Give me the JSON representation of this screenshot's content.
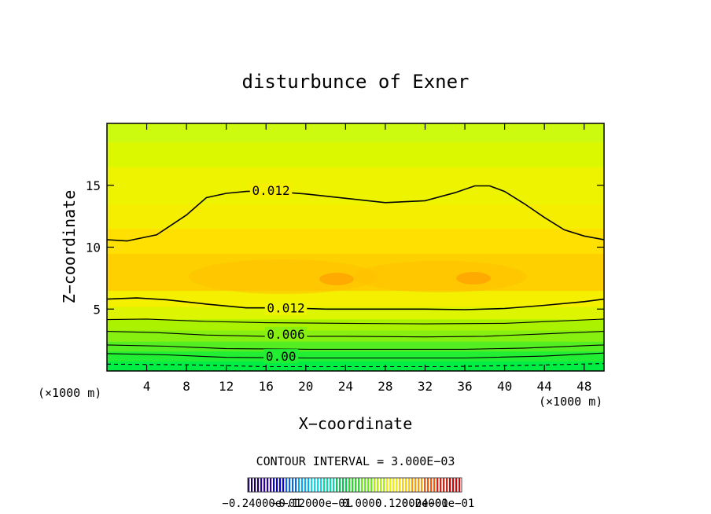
{
  "chart_data": {
    "type": "contour",
    "title": "disturbunce of Exner",
    "xlabel": "X−coordinate",
    "ylabel": "Z−coordinate",
    "x_unit_label": "(×1000 m)",
    "z_unit_label": "(×1000 m)",
    "xlim": [
      0,
      50
    ],
    "ylim": [
      0,
      20
    ],
    "x_ticks": [
      4,
      8,
      12,
      16,
      20,
      24,
      28,
      32,
      36,
      40,
      44,
      48
    ],
    "y_ticks": [
      5,
      10,
      15
    ],
    "contour_interval_text": "CONTOUR INTERVAL = 3.000E−03",
    "contour_labels": [
      {
        "text": "0.012",
        "x": 16.5,
        "z": 14.6
      },
      {
        "text": "0.012",
        "x": 18.0,
        "z": 5.1
      },
      {
        "text": "0.006",
        "x": 18.0,
        "z": 3.0
      },
      {
        "text": "0.00",
        "x": 17.5,
        "z": 1.2
      }
    ],
    "contours": [
      {
        "level": 0.012,
        "points": [
          [
            0,
            10.6
          ],
          [
            2,
            10.5
          ],
          [
            5,
            11.0
          ],
          [
            8,
            12.6
          ],
          [
            10,
            14.0
          ],
          [
            12,
            14.35
          ],
          [
            14,
            14.5
          ],
          [
            16,
            14.55
          ],
          [
            20,
            14.3
          ],
          [
            24,
            13.95
          ],
          [
            28,
            13.6
          ],
          [
            32,
            13.75
          ],
          [
            35,
            14.4
          ],
          [
            37,
            14.95
          ],
          [
            38.5,
            14.95
          ],
          [
            40,
            14.5
          ],
          [
            42,
            13.5
          ],
          [
            44,
            12.4
          ],
          [
            46,
            11.4
          ],
          [
            48,
            10.9
          ],
          [
            50,
            10.6
          ]
        ]
      },
      {
        "level": 0.012,
        "points": [
          [
            0,
            5.8
          ],
          [
            3,
            5.9
          ],
          [
            6,
            5.75
          ],
          [
            10,
            5.4
          ],
          [
            14,
            5.1
          ],
          [
            18,
            5.1
          ],
          [
            22,
            5.0
          ],
          [
            28,
            5.0
          ],
          [
            32,
            5.0
          ],
          [
            36,
            4.95
          ],
          [
            40,
            5.05
          ],
          [
            44,
            5.3
          ],
          [
            48,
            5.6
          ],
          [
            50,
            5.8
          ]
        ]
      },
      {
        "level": 0.009,
        "points": [
          [
            0,
            4.15
          ],
          [
            4,
            4.2
          ],
          [
            10,
            4.0
          ],
          [
            16,
            3.9
          ],
          [
            24,
            3.85
          ],
          [
            32,
            3.8
          ],
          [
            40,
            3.85
          ],
          [
            46,
            4.05
          ],
          [
            50,
            4.2
          ]
        ]
      },
      {
        "level": 0.006,
        "points": [
          [
            0,
            3.2
          ],
          [
            5,
            3.1
          ],
          [
            10,
            2.9
          ],
          [
            16,
            2.8
          ],
          [
            24,
            2.8
          ],
          [
            32,
            2.75
          ],
          [
            38,
            2.8
          ],
          [
            44,
            3.0
          ],
          [
            50,
            3.2
          ]
        ]
      },
      {
        "level": 0.003,
        "points": [
          [
            0,
            2.1
          ],
          [
            6,
            2.0
          ],
          [
            12,
            1.8
          ],
          [
            20,
            1.75
          ],
          [
            28,
            1.75
          ],
          [
            36,
            1.75
          ],
          [
            42,
            1.85
          ],
          [
            50,
            2.1
          ]
        ]
      },
      {
        "level": 0.0,
        "points": [
          [
            0,
            1.4
          ],
          [
            6,
            1.3
          ],
          [
            12,
            1.1
          ],
          [
            20,
            1.05
          ],
          [
            28,
            1.05
          ],
          [
            36,
            1.05
          ],
          [
            44,
            1.2
          ],
          [
            50,
            1.45
          ]
        ]
      },
      {
        "level": -0.003,
        "dashed": true,
        "points": [
          [
            0,
            0.55
          ],
          [
            8,
            0.5
          ],
          [
            16,
            0.35
          ],
          [
            25,
            0.35
          ],
          [
            34,
            0.35
          ],
          [
            42,
            0.45
          ],
          [
            50,
            0.6
          ]
        ]
      }
    ],
    "color_bands": [
      {
        "z": [
          0,
          0.8
        ],
        "color": "#00ee44"
      },
      {
        "z": [
          0.8,
          1.6
        ],
        "color": "#22ee33"
      },
      {
        "z": [
          1.6,
          2.4
        ],
        "color": "#55ee22"
      },
      {
        "z": [
          2.4,
          3.3
        ],
        "color": "#88f011"
      },
      {
        "z": [
          3.3,
          4.2
        ],
        "color": "#aaf200"
      },
      {
        "z": [
          4.2,
          5.2
        ],
        "color": "#ddf500"
      },
      {
        "z": [
          5.2,
          6.5
        ],
        "color": "#f4f000"
      },
      {
        "z": [
          6.5,
          9.5
        ],
        "color": "#ffd000"
      },
      {
        "z": [
          9.5,
          11.5
        ],
        "color": "#ffe000"
      },
      {
        "z": [
          11.5,
          13.5
        ],
        "color": "#f6ee00"
      },
      {
        "z": [
          13.5,
          16.5
        ],
        "color": "#eef400"
      },
      {
        "z": [
          16.5,
          18.5
        ],
        "color": "#dcf800"
      },
      {
        "z": [
          18.5,
          20
        ],
        "color": "#ccfb10"
      }
    ],
    "colorbar": {
      "labels": [
        "−0.24000e−01",
        "−0.12000e−01",
        "0.0000",
        "0.12000e−01",
        "0.24000e−01"
      ],
      "colors": [
        "#1a0055",
        "#2a00aa",
        "#0000ee",
        "#0066ff",
        "#00aaff",
        "#00ddee",
        "#00ddaa",
        "#00cc55",
        "#22dd22",
        "#66ee11",
        "#aaf000",
        "#eeee00",
        "#ffcc00",
        "#ff9900",
        "#ff5500",
        "#ff1100",
        "#dd0000"
      ]
    }
  }
}
